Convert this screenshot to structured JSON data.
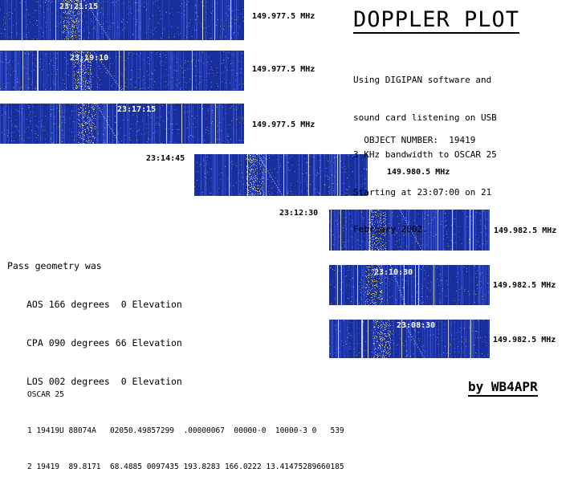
{
  "title": "DOPPLER PLOT",
  "description": [
    "Using DIGIPAN software and",
    "sound card listening on USB",
    "3 KHz bandwidth to OSCAR 25",
    "Starting at 23:07:00 on 21",
    "February 2002."
  ],
  "object_label": "OBJECT NUMBER:",
  "object_number": "19419",
  "geometry": {
    "heading": "Pass geometry was",
    "lines": [
      "AOS 166 degrees  0 Elevation",
      "CPA 090 degrees 66 Elevation",
      "LOS 002 degrees  0 Elevation"
    ]
  },
  "tle": {
    "name": "OSCAR 25",
    "line1": "1 19419U 88074A   02050.49857299  .00000067  00000-0  10000-3 0   539",
    "line2": "2 19419  89.8171  68.4885 0097435 193.8283 166.0222 13.41475289660185"
  },
  "byline": "by WB4APR",
  "waterfalls": [
    {
      "time": "23:21:15",
      "freq": "149.977.5 MHz"
    },
    {
      "time": "23:19:10",
      "freq": "149.977.5 MHz"
    },
    {
      "time": "23:17:15",
      "freq": "149.977.5 MHz"
    },
    {
      "time": "23:14:45",
      "freq": "149.980.5 MHz"
    },
    {
      "time": "23:12:30",
      "freq": "149.982.5 MHz"
    },
    {
      "time": "23:10:30",
      "freq": "149.982.5 MHz"
    },
    {
      "time": "23:08:30",
      "freq": "149.982.5 MHz"
    }
  ],
  "colors": {
    "waterfall_bg": "#1a2f9e",
    "waterfall_noise": "#3d5bd8",
    "waterfall_signal": "#d8d08a",
    "waterfall_line": "#e8e8ff"
  }
}
